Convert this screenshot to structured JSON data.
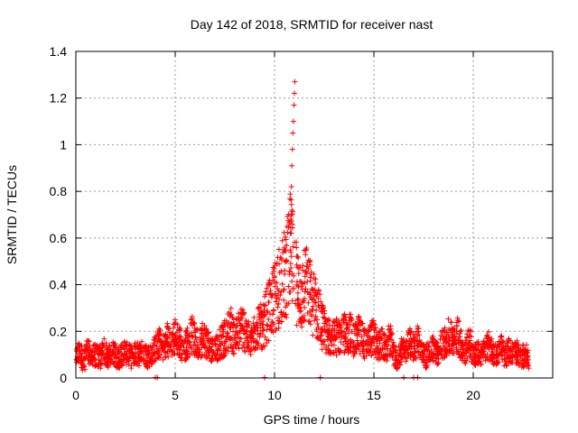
{
  "chart_data": {
    "type": "scatter",
    "title": "Day 142 of 2018, SRMTID for receiver nast",
    "xlabel": "GPS time / hours",
    "ylabel": "SRMTID / TECUs",
    "xlim": [
      0,
      24
    ],
    "ylim": [
      0,
      1.4
    ],
    "xticks": [
      0,
      5,
      10,
      15,
      20
    ],
    "yticks": [
      0,
      0.2,
      0.4,
      0.6,
      0.8,
      1,
      1.2,
      1.4
    ],
    "xtick_labels": [
      "0",
      "5",
      "10",
      "15",
      "20"
    ],
    "ytick_labels": [
      "0",
      "0.2",
      "0.4",
      "0.6",
      "0.8",
      "1",
      "1.2",
      "1.4"
    ],
    "grid": true,
    "marker": "+",
    "series_color": "#ff0000",
    "series": [
      {
        "name": "SRMTID",
        "x": [
          0.0,
          0.2,
          0.4,
          0.6,
          0.8,
          1.0,
          1.2,
          1.4,
          1.6,
          1.8,
          2.0,
          2.2,
          2.4,
          2.6,
          2.8,
          3.0,
          3.2,
          3.4,
          3.6,
          3.8,
          4.0,
          4.2,
          4.4,
          4.6,
          4.8,
          5.0,
          5.2,
          5.4,
          5.6,
          5.8,
          6.0,
          6.2,
          6.4,
          6.6,
          6.8,
          7.0,
          7.2,
          7.4,
          7.6,
          7.8,
          8.0,
          8.2,
          8.4,
          8.6,
          8.8,
          9.0,
          9.2,
          9.4,
          9.6,
          9.8,
          10.0,
          10.2,
          10.4,
          10.6,
          10.8,
          11.0,
          11.2,
          11.4,
          11.6,
          11.8,
          12.0,
          12.2,
          12.4,
          12.6,
          12.8,
          13.0,
          13.2,
          13.4,
          13.6,
          13.8,
          14.0,
          14.2,
          14.4,
          14.6,
          14.8,
          15.0,
          15.2,
          15.4,
          15.6,
          15.8,
          16.0,
          16.2,
          16.4,
          16.6,
          16.8,
          17.0,
          17.2,
          17.4,
          17.6,
          17.8,
          18.0,
          18.2,
          18.4,
          18.6,
          18.8,
          19.0,
          19.2,
          19.4,
          19.6,
          19.8,
          20.0,
          20.2,
          20.4,
          20.6,
          20.8,
          21.0,
          21.2,
          21.4,
          21.6,
          21.8,
          22.0,
          22.2,
          22.4,
          22.6,
          22.8
        ],
        "y": [
          0.08,
          0.11,
          0.07,
          0.12,
          0.09,
          0.1,
          0.08,
          0.12,
          0.09,
          0.11,
          0.1,
          0.08,
          0.12,
          0.1,
          0.09,
          0.11,
          0.1,
          0.12,
          0.09,
          0.1,
          0.13,
          0.15,
          0.12,
          0.17,
          0.14,
          0.18,
          0.16,
          0.12,
          0.15,
          0.19,
          0.16,
          0.14,
          0.18,
          0.15,
          0.13,
          0.12,
          0.14,
          0.16,
          0.19,
          0.21,
          0.17,
          0.2,
          0.22,
          0.18,
          0.15,
          0.19,
          0.23,
          0.21,
          0.27,
          0.3,
          0.34,
          0.38,
          0.42,
          0.47,
          0.55,
          0.44,
          0.39,
          0.36,
          0.41,
          0.35,
          0.31,
          0.28,
          0.22,
          0.19,
          0.17,
          0.2,
          0.16,
          0.21,
          0.18,
          0.2,
          0.15,
          0.19,
          0.17,
          0.14,
          0.16,
          0.18,
          0.13,
          0.15,
          0.12,
          0.17,
          0.1,
          0.08,
          0.12,
          0.11,
          0.15,
          0.13,
          0.16,
          0.12,
          0.09,
          0.11,
          0.13,
          0.1,
          0.14,
          0.16,
          0.18,
          0.15,
          0.19,
          0.14,
          0.11,
          0.17,
          0.09,
          0.11,
          0.1,
          0.12,
          0.14,
          0.11,
          0.1,
          0.13,
          0.09,
          0.12,
          0.1,
          0.11,
          0.09,
          0.1,
          0.08
        ],
        "spike_x": [
          10.8,
          10.82,
          10.85,
          10.87,
          10.9,
          10.92,
          10.95,
          10.98,
          11.0,
          11.02
        ],
        "spike_y": [
          0.62,
          0.68,
          0.82,
          0.91,
          0.98,
          1.05,
          1.1,
          1.17,
          1.22,
          1.27
        ]
      }
    ]
  }
}
